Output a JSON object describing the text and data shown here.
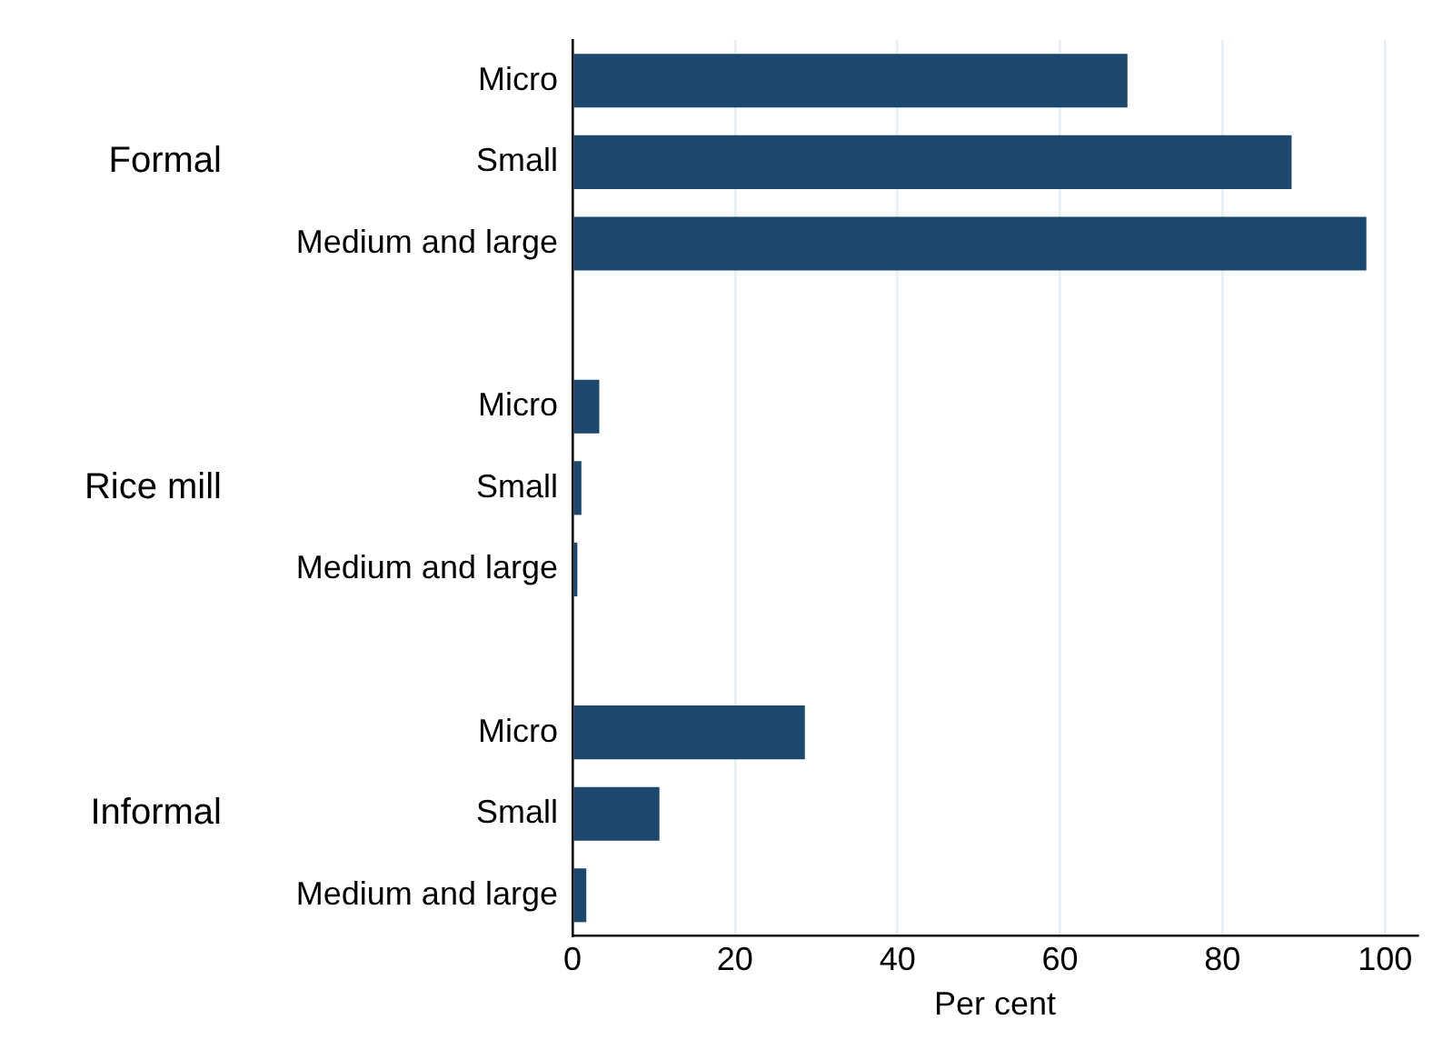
{
  "chart_data": {
    "type": "bar",
    "orientation": "horizontal",
    "xlabel": "Per cent",
    "categories": [
      "Micro",
      "Small",
      "Medium and large",
      null,
      "Micro",
      "Small",
      "Medium and large",
      null,
      "Micro",
      "Small",
      "Medium and large"
    ],
    "values": [
      68.3,
      88.5,
      97.7,
      null,
      3.3,
      1.1,
      0.6,
      null,
      28.6,
      10.7,
      1.7
    ],
    "color": "#1c4870",
    "xlim": [
      0,
      104
    ],
    "xticks": [
      0,
      20,
      40,
      60,
      80,
      100
    ],
    "grid": "x",
    "legend": false,
    "annotations": [
      "Formal",
      "Rice mill",
      "Informal"
    ]
  }
}
